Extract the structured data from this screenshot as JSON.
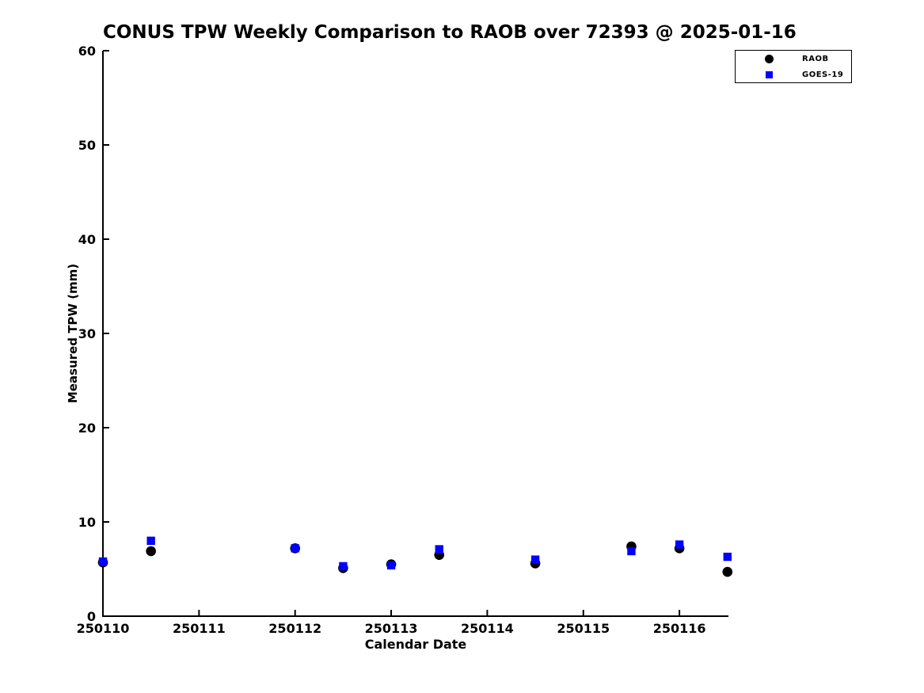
{
  "chart_data": {
    "type": "scatter",
    "title": "CONUS TPW Weekly Comparison to RAOB over 72393 @ 2025-01-16",
    "xlabel": "Calendar Date",
    "ylabel": "Measured TPW (mm)",
    "xlim": [
      250110,
      250116.51
    ],
    "ylim": [
      0,
      60
    ],
    "grid": false,
    "legend_position": "top-right",
    "xtick_values": [
      250110,
      250111,
      250112,
      250113,
      250114,
      250115,
      250116
    ],
    "xtick_labels": [
      "250110",
      "250111",
      "250112",
      "250113",
      "250114",
      "250115",
      "250116"
    ],
    "ytick_values": [
      0,
      10,
      20,
      30,
      40,
      50,
      60
    ],
    "ytick_labels": [
      "0",
      "10",
      "20",
      "30",
      "40",
      "50",
      "60"
    ],
    "series": [
      {
        "name": "RAOB",
        "marker": "circle",
        "color": "#000000",
        "x": [
          250110,
          250110.5,
          250112,
          250112.5,
          250113,
          250113.5,
          250114.5,
          250115.5,
          250116,
          250116.5
        ],
        "y": [
          5.7,
          6.9,
          7.2,
          5.1,
          5.5,
          6.5,
          5.6,
          7.4,
          7.2,
          4.7
        ]
      },
      {
        "name": "GOES-19",
        "marker": "square",
        "color": "#0000ff",
        "x": [
          250110,
          250110.5,
          250112,
          250112.5,
          250113,
          250113.5,
          250114.5,
          250115.5,
          250116,
          250116.5
        ],
        "y": [
          5.8,
          8.0,
          7.2,
          5.3,
          5.4,
          7.1,
          6.0,
          6.9,
          7.6,
          6.3
        ]
      }
    ]
  },
  "legend": {
    "items": [
      {
        "label": "RAOB",
        "marker": "circle",
        "color": "#000000"
      },
      {
        "label": "GOES-19",
        "marker": "square",
        "color": "#0000ff"
      }
    ]
  }
}
